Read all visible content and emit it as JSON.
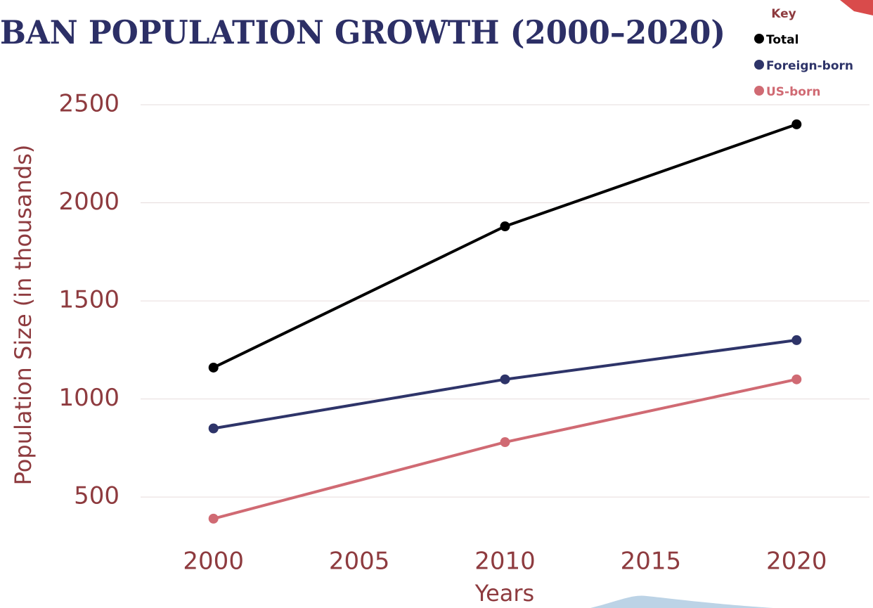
{
  "chart_data": {
    "type": "line",
    "title": "BAN POPULATION GROWTH (2000–2020)",
    "x_label": "Years",
    "y_label": "Population Size (in thousands)",
    "legend_title": "Key",
    "x": [
      2000,
      2010,
      2020
    ],
    "series": [
      {
        "name": "Total",
        "color": "#000000",
        "values": [
          1160,
          1880,
          2400
        ]
      },
      {
        "name": "Foreign-born",
        "color": "#2e3469",
        "values": [
          850,
          1100,
          1300
        ]
      },
      {
        "name": "US-born",
        "color": "#d06a73",
        "values": [
          390,
          780,
          1100
        ]
      }
    ],
    "xlim": [
      1997.5,
      2022.5
    ],
    "xticks": [
      2000,
      2005,
      2010,
      2015,
      2020
    ],
    "ylim": [
      300,
      2550
    ],
    "yticks": [
      500,
      1000,
      1500,
      2000,
      2500
    ],
    "grid": true,
    "legend": "upper right"
  }
}
